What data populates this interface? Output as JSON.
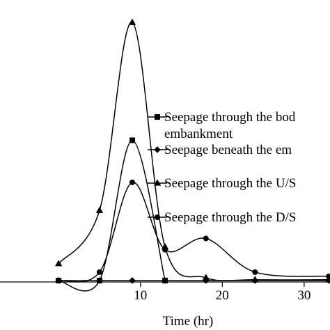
{
  "chart_data": {
    "type": "line",
    "title": "",
    "xlabel": "Time (hr)",
    "ylabel": "",
    "xlim": [
      -7.5,
      33.5
    ],
    "ylim": [
      -0.005,
      1.0
    ],
    "xticks": [
      10,
      20,
      30
    ],
    "grid": false,
    "legend_position": "right",
    "series": [
      {
        "name": "Seepage through the body of embankment",
        "legend_lines": [
          "Seepage through the bod",
          "embankment"
        ],
        "marker": "square",
        "x": [
          0,
          5,
          9,
          13
        ],
        "y": [
          0,
          0,
          0.5,
          0
        ]
      },
      {
        "name": "Seepage beneath the embankment",
        "legend_lines": [
          "Seepage beneath the em"
        ],
        "marker": "diamond",
        "x": [
          0,
          5,
          9,
          13,
          18,
          24,
          33
        ],
        "y": [
          0,
          0,
          0,
          0,
          0,
          0,
          0
        ]
      },
      {
        "name": "Seepage through the U/S",
        "legend_lines": [
          "Seepage through the U/S"
        ],
        "marker": "triangle",
        "x": [
          0,
          5,
          9,
          13,
          18,
          24,
          33
        ],
        "y": [
          0.06,
          0.25,
          0.92,
          0.12,
          0.01,
          0.003,
          0.003
        ]
      },
      {
        "name": "Seepage through the D/S",
        "legend_lines": [
          "Seepage through the D/S"
        ],
        "marker": "circle",
        "x": [
          0,
          5,
          9,
          13,
          18,
          24,
          33
        ],
        "y": [
          0,
          0.03,
          0.35,
          0.11,
          0.15,
          0.03,
          0.015
        ]
      }
    ]
  }
}
